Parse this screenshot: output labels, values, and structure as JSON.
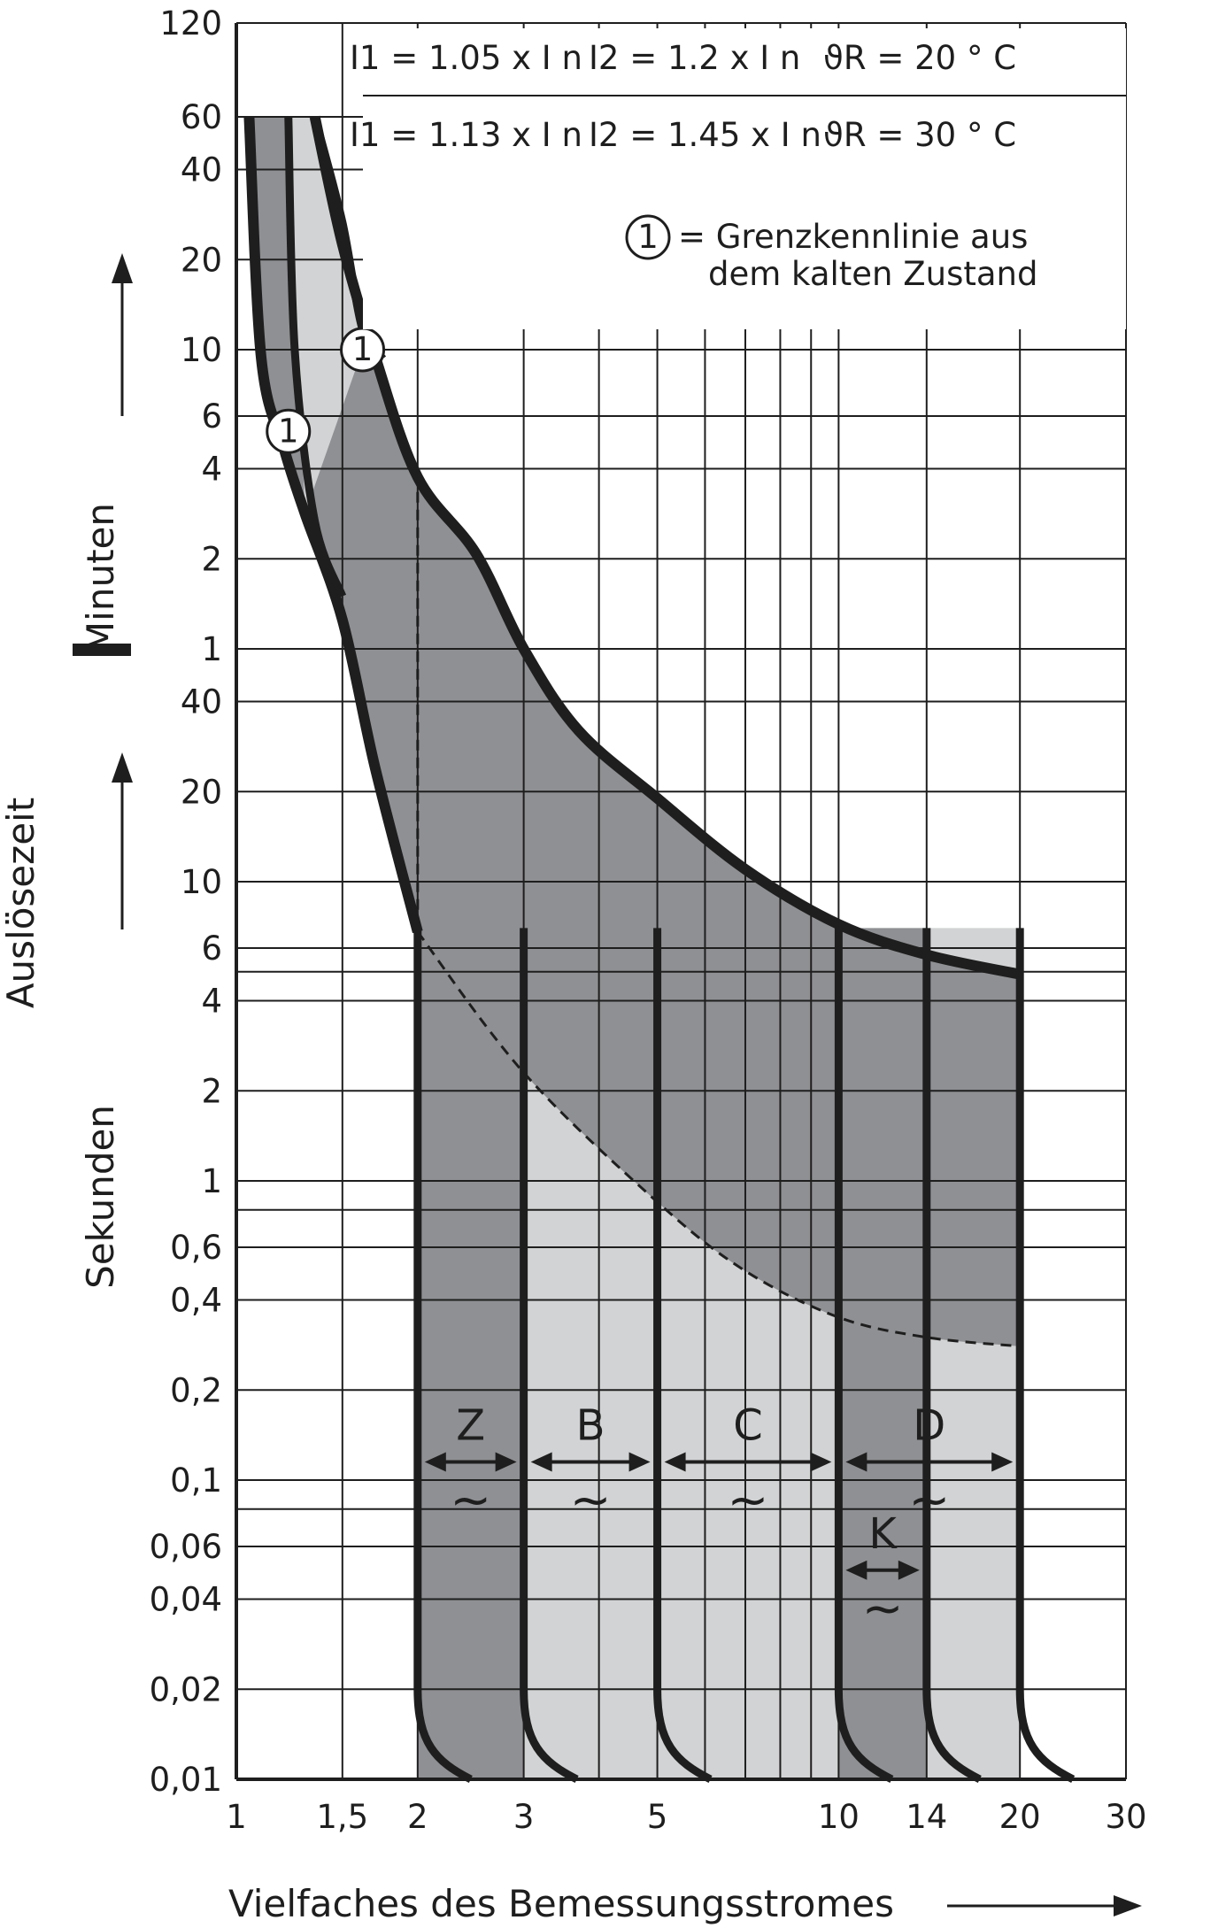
{
  "chart_data": {
    "type": "area",
    "title": "",
    "xscale": "log",
    "yscale": "log",
    "xlim": [
      1,
      30
    ],
    "xlabel": "Vielfaches des Bemessungsstromes",
    "ylabel": "Auslösezeit",
    "ylabel_parts": {
      "upper": "Minuten",
      "lower": "Sekunden",
      "separator": "I"
    },
    "x_ticks": [
      "1",
      "1,5",
      "2",
      "3",
      "5",
      "10",
      "14",
      "20",
      "30"
    ],
    "x_tick_values": [
      1,
      1.5,
      2,
      3,
      5,
      10,
      14,
      20,
      30
    ],
    "y_ticks_minutes": [
      "120",
      "60",
      "40",
      "20",
      "10",
      "6",
      "4",
      "2",
      "1"
    ],
    "y_tick_minute_values": [
      120,
      60,
      40,
      20,
      10,
      6,
      4,
      2,
      1
    ],
    "y_ticks_seconds": [
      "40",
      "20",
      "10",
      "6",
      "4",
      "2",
      "1",
      "0,6",
      "0,4",
      "0,2",
      "0,1",
      "0,06",
      "0,04",
      "0,02",
      "0,01"
    ],
    "y_tick_second_values": [
      40,
      20,
      10,
      6,
      4,
      2,
      1,
      0.6,
      0.4,
      0.2,
      0.1,
      0.06,
      0.04,
      0.02,
      0.01
    ],
    "legend": {
      "row1": {
        "i1": "I1 = 1.05 x I n",
        "i2": "I2 = 1.2 x I n",
        "theta": "ϑR = 20 ° C"
      },
      "row2": {
        "i1": "I1 = 1.13 x I n",
        "i2": "I2 = 1.45 x I n",
        "theta": "ϑR = 30 ° C"
      },
      "marker": "1",
      "marker_text_line1": "= Grenzkennlinie aus",
      "marker_text_line2": "dem kalten Zustand"
    },
    "curve_marker_label": "1",
    "thermal_lower_curve_seconds": [
      {
        "x": 1.05,
        "t": 3600
      },
      {
        "x": 1.1,
        "t": 560
      },
      {
        "x": 1.2,
        "t": 280
      },
      {
        "x": 1.3,
        "t": 170
      },
      {
        "x": 1.5,
        "t": 75
      },
      {
        "x": 1.7,
        "t": 24
      },
      {
        "x": 2.0,
        "t": 6.8
      }
    ],
    "thermal_upper_curve_seconds": [
      {
        "x": 1.35,
        "t": 3600
      },
      {
        "x": 1.5,
        "t": 1350
      },
      {
        "x": 1.7,
        "t": 570
      },
      {
        "x": 2.0,
        "t": 225
      },
      {
        "x": 2.5,
        "t": 125
      },
      {
        "x": 3.0,
        "t": 60
      },
      {
        "x": 3.7,
        "t": 32
      },
      {
        "x": 5.0,
        "t": 19
      },
      {
        "x": 7.0,
        "t": 11
      },
      {
        "x": 10.0,
        "t": 7.2
      },
      {
        "x": 14.0,
        "t": 5.7
      },
      {
        "x": 20.0,
        "t": 4.9
      }
    ],
    "dashed_extension_seconds": [
      {
        "x": 2.0,
        "t": 6.8
      },
      {
        "x": 3.0,
        "t": 2.3
      },
      {
        "x": 5.0,
        "t": 0.85
      },
      {
        "x": 7.0,
        "t": 0.5
      },
      {
        "x": 10.0,
        "t": 0.35
      },
      {
        "x": 14.0,
        "t": 0.3
      },
      {
        "x": 20.0,
        "t": 0.28
      }
    ],
    "magnetic_bands": [
      {
        "name": "Z",
        "from": 2,
        "to": 3
      },
      {
        "name": "B",
        "from": 3,
        "to": 5
      },
      {
        "name": "C",
        "from": 5,
        "to": 10
      },
      {
        "name": "K",
        "from": 10,
        "to": 14
      },
      {
        "name": "D",
        "from": 10,
        "to": 20
      }
    ],
    "band_tilde": "~",
    "grid": true,
    "colors": {
      "dark_fill": "#8f9093",
      "light_fill": "#d2d3d4",
      "curve": "#1e1e1e",
      "grid": "#1e1e1e"
    }
  }
}
